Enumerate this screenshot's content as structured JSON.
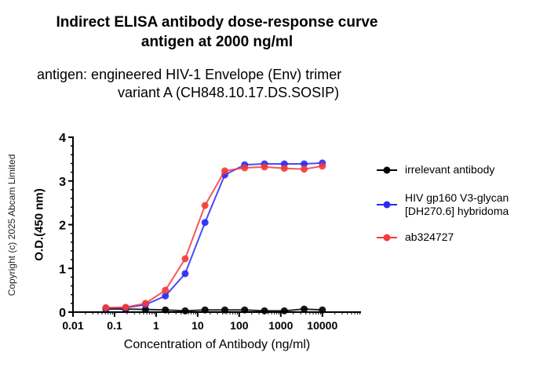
{
  "title": {
    "line1": "Indirect ELISA antibody dose-response curve",
    "line2": "antigen at 2000 ng/ml"
  },
  "subtitle": {
    "line1": "antigen: engineered HIV-1 Envelope (Env) trimer",
    "line2": "variant A (CH848.10.17.DS.SOSIP)"
  },
  "copyright": "Copyright (c) 2025 Abcam Limited",
  "chart_data": {
    "type": "line",
    "title": "Indirect ELISA antibody dose-response curve antigen at 2000 ng/ml",
    "subtitle": "antigen: engineered HIV-1 Envelope (Env) trimer variant A (CH848.10.17.DS.SOSIP)",
    "xlabel": "Concentration of Antibody (ng/ml)",
    "ylabel": "O.D.(450 nm)",
    "xscale": "log",
    "xlim": [
      0.01,
      85000
    ],
    "ylim": [
      0,
      4
    ],
    "xticks": [
      "0.01",
      "0.1",
      "1",
      "10",
      "100",
      "1000",
      "10000"
    ],
    "yticks": [
      "0",
      "1",
      "2",
      "3",
      "4"
    ],
    "grid": false,
    "legend_position": "right",
    "x": [
      0.0617,
      0.185,
      0.556,
      1.67,
      5,
      15,
      45,
      135,
      405,
      1215,
      3645,
      10000
    ],
    "series": [
      {
        "name": "irrelevant antibody",
        "color": "#000000",
        "values": [
          0.07,
          0.07,
          0.06,
          0.05,
          0.03,
          0.05,
          0.05,
          0.05,
          0.03,
          0.03,
          0.07,
          0.05
        ]
      },
      {
        "name": "HIV gp160 V3-glycan [DH270.6] hybridoma",
        "color": "#2a2af5",
        "values": [
          0.09,
          0.1,
          0.17,
          0.37,
          0.88,
          2.05,
          3.14,
          3.37,
          3.39,
          3.39,
          3.39,
          3.41
        ]
      },
      {
        "name": "ab324727",
        "color": "#f53a3a",
        "values": [
          0.1,
          0.11,
          0.2,
          0.5,
          1.22,
          2.44,
          3.23,
          3.3,
          3.32,
          3.29,
          3.27,
          3.34
        ]
      }
    ]
  },
  "legend": [
    {
      "line1": "irrelevant antibody",
      "line2": ""
    },
    {
      "line1": "HIV gp160 V3-glycan",
      "line2": "[DH270.6] hybridoma"
    },
    {
      "line1": "ab324727",
      "line2": ""
    }
  ]
}
